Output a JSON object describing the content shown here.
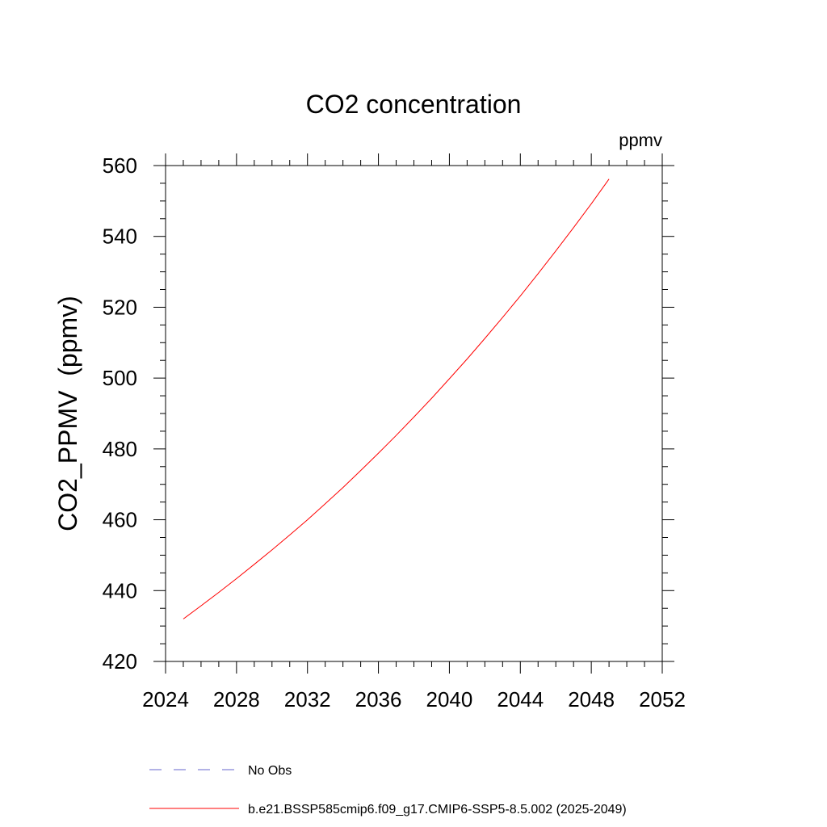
{
  "chart_data": {
    "type": "line",
    "title": "CO2 concentration",
    "units_label": "ppmv",
    "xlabel": "",
    "ylabel": "CO2_PPMV  (ppmv)",
    "xlim": [
      2024,
      2052
    ],
    "ylim": [
      420,
      560
    ],
    "x_ticks": [
      2024,
      2028,
      2032,
      2036,
      2040,
      2044,
      2048,
      2052
    ],
    "y_ticks": [
      420,
      440,
      460,
      480,
      500,
      520,
      540,
      560
    ],
    "grid": false,
    "legend_placement": "bottom",
    "series": [
      {
        "name": "No Obs",
        "color": "#6666cc",
        "dash": true,
        "x": [],
        "y": []
      },
      {
        "name": "b.e21.BSSP585cmip6.f09_g17.CMIP6-SSP5-8.5.002 (2025-2049)",
        "color": "#ff0000",
        "dash": false,
        "x": [
          2025,
          2026,
          2027,
          2028,
          2029,
          2030,
          2031,
          2032,
          2033,
          2034,
          2035,
          2036,
          2037,
          2038,
          2039,
          2040,
          2041,
          2042,
          2043,
          2044,
          2045,
          2046,
          2047,
          2048,
          2049
        ],
        "y": [
          432.0,
          435.7,
          439.5,
          443.4,
          447.4,
          451.5,
          455.7,
          460.0,
          464.5,
          469.1,
          473.9,
          478.8,
          483.8,
          489.0,
          494.3,
          499.8,
          505.4,
          511.2,
          517.1,
          523.2,
          529.5,
          535.9,
          542.5,
          549.2,
          556.2
        ]
      }
    ]
  }
}
